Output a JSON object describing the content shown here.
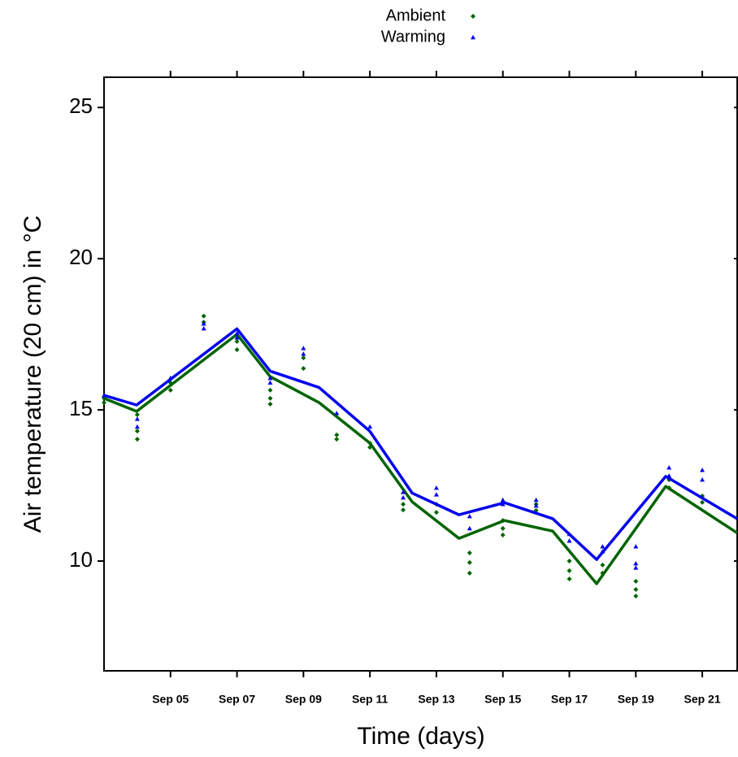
{
  "chart_data": {
    "type": "scatter",
    "xlabel": "Time (days)",
    "ylabel": "Air temperature (20 cm) in °C",
    "xlim": [
      3,
      22.05
    ],
    "ylim": [
      6.37,
      26
    ],
    "xticks": [
      {
        "value": 5,
        "label": "Sep 05"
      },
      {
        "value": 7,
        "label": "Sep 07"
      },
      {
        "value": 9,
        "label": "Sep 09"
      },
      {
        "value": 11,
        "label": "Sep 11"
      },
      {
        "value": 13,
        "label": "Sep 13"
      },
      {
        "value": 15,
        "label": "Sep 15"
      },
      {
        "value": 17,
        "label": "Sep 17"
      },
      {
        "value": 19,
        "label": "Sep 19"
      },
      {
        "value": 21,
        "label": "Sep 21"
      }
    ],
    "yticks": [
      10,
      15,
      20,
      25
    ],
    "legend": "top",
    "series": [
      {
        "name": "Ambient",
        "color": "#006400",
        "marker": "diamond",
        "x": [
          3,
          3,
          4,
          4,
          4,
          5,
          5,
          6,
          6,
          7,
          7,
          8,
          8,
          8,
          9,
          9,
          10,
          10,
          11,
          11,
          12,
          12,
          13,
          13,
          14,
          14,
          14,
          15,
          15,
          15,
          16,
          16,
          17,
          17,
          17,
          18,
          18,
          19,
          19,
          19,
          20,
          20,
          21,
          21
        ],
        "values": [
          15.38,
          15.24,
          14.84,
          14.3,
          14.03,
          15.9,
          15.65,
          18.1,
          17.9,
          17.26,
          16.99,
          15.65,
          15.38,
          15.19,
          16.72,
          16.37,
          14.17,
          14.03,
          13.9,
          13.76,
          11.88,
          11.69,
          11.88,
          11.61,
          10.27,
          9.95,
          9.6,
          11.34,
          11.08,
          10.86,
          11.88,
          11.67,
          10,
          9.68,
          9.41,
          9.87,
          9.6,
          9.33,
          9.06,
          8.84,
          12.69,
          12.42,
          12.15,
          11.94
        ],
        "smooth_x": [
          3,
          3.98,
          7,
          8,
          9.47,
          11,
          12.27,
          13.68,
          15.05,
          16.5,
          17.82,
          19.9,
          22.05
        ],
        "smooth_values": [
          15.38,
          14.95,
          17.5,
          16.1,
          15.24,
          13.9,
          11.96,
          10.75,
          11.34,
          10.99,
          9.25,
          12.47,
          10.93
        ]
      },
      {
        "name": "Warming",
        "color": "#0000ee",
        "marker": "triangle",
        "x": [
          3,
          4,
          4,
          5,
          6,
          6,
          7,
          7,
          8,
          8,
          9,
          9,
          10,
          11,
          12,
          12,
          13,
          13,
          14,
          14,
          15,
          15,
          16,
          16,
          17,
          17,
          18,
          18,
          19,
          19,
          19,
          20,
          20,
          21,
          21
        ],
        "values": [
          15.48,
          14.7,
          14.44,
          16.05,
          17.85,
          17.69,
          17.53,
          17.39,
          16.05,
          15.9,
          17.04,
          16.85,
          14.89,
          14.44,
          12.28,
          12.1,
          12.42,
          12.2,
          11.48,
          11.08,
          12.02,
          11.88,
          12.02,
          11.83,
          10.89,
          10.67,
          10.48,
          10.32,
          10.48,
          9.92,
          9.78,
          13.09,
          12.82,
          13.01,
          12.69
        ],
        "smooth_x": [
          3,
          3.98,
          7,
          8,
          9.47,
          11,
          12.27,
          13.68,
          15.05,
          16.5,
          17.82,
          19.9,
          22.05
        ],
        "smooth_values": [
          15.48,
          15.16,
          17.68,
          16.28,
          15.74,
          14.29,
          12.25,
          11.53,
          11.93,
          11.4,
          10.05,
          12.8,
          11.4
        ]
      }
    ]
  }
}
